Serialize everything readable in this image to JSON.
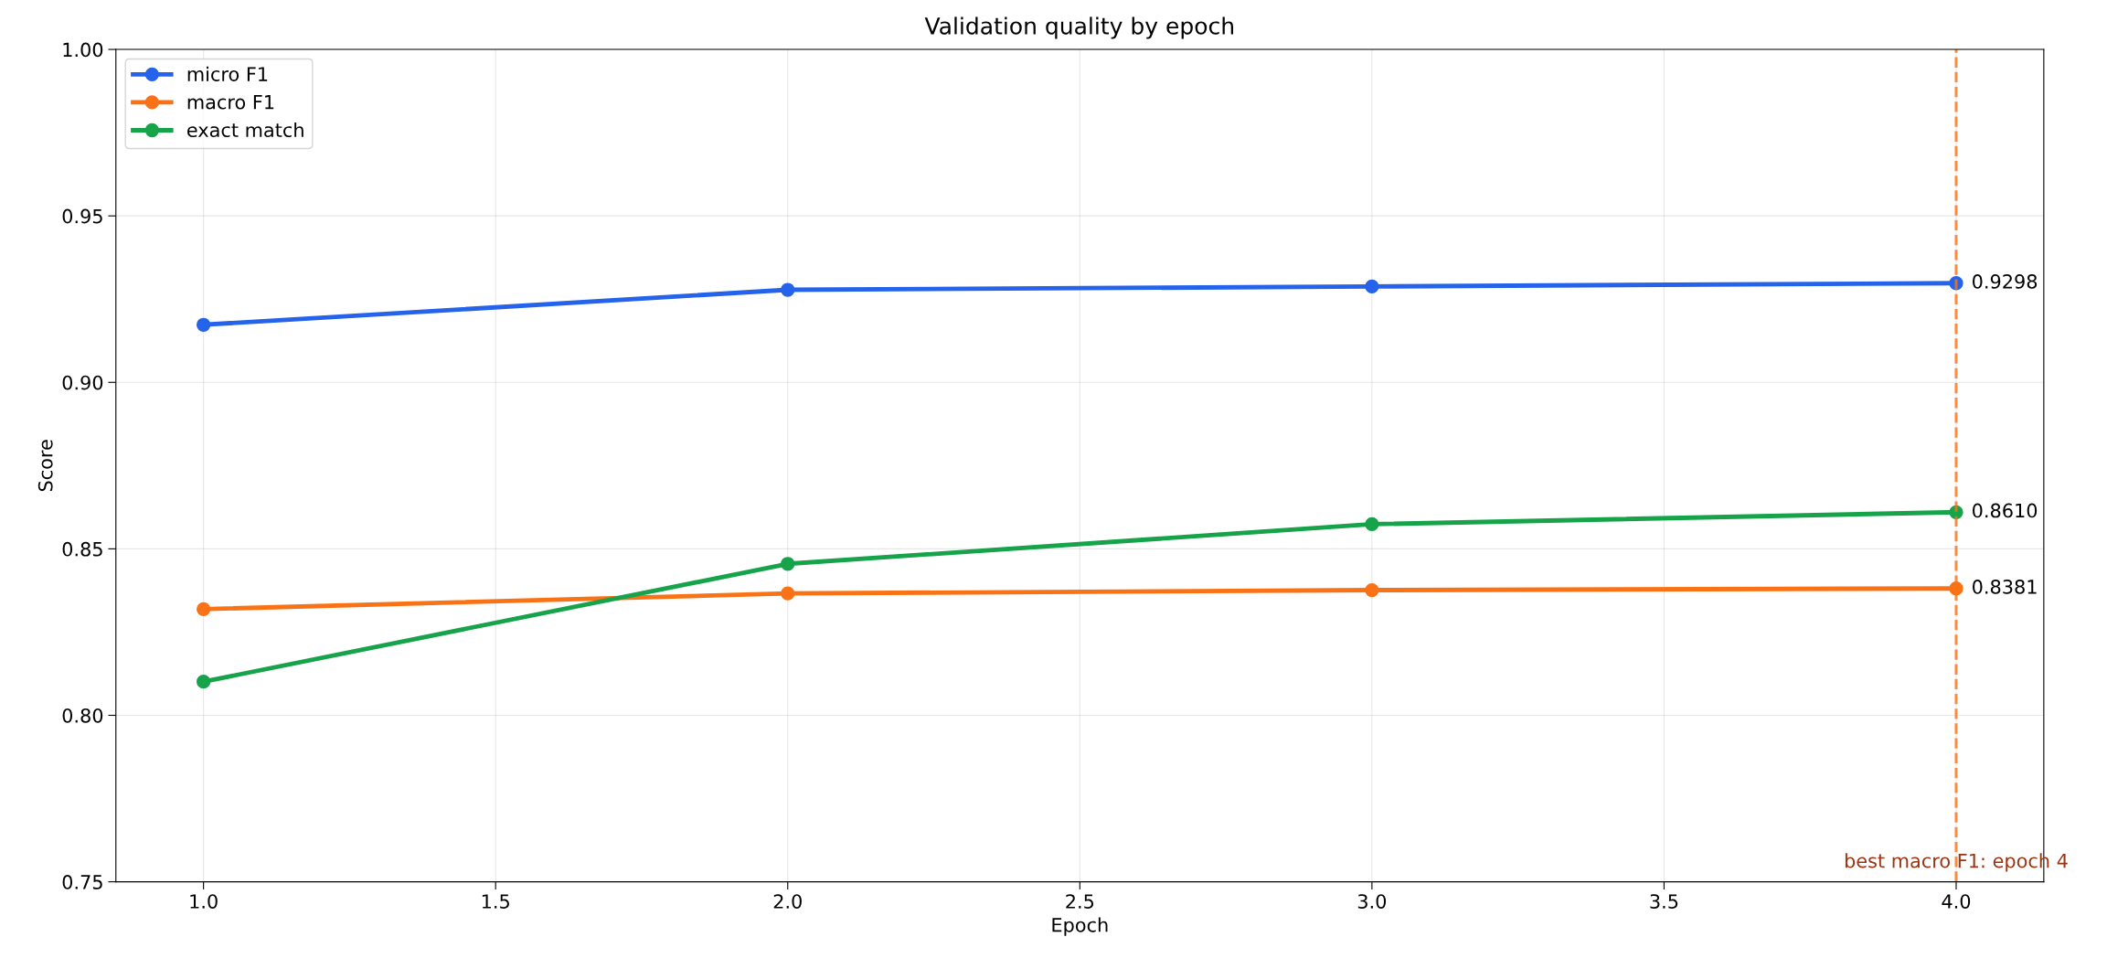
{
  "chart_data": {
    "type": "line",
    "title": "Validation quality by epoch",
    "xlabel": "Epoch",
    "ylabel": "Score",
    "x": [
      1,
      2,
      3,
      4
    ],
    "series": [
      {
        "name": "micro F1",
        "color": "#2563eb",
        "values": [
          0.9173,
          0.9278,
          0.9288,
          0.9298
        ],
        "value_labels": [
          null,
          null,
          null,
          "0.9298"
        ]
      },
      {
        "name": "macro F1",
        "color": "#f97316",
        "values": [
          0.8319,
          0.8366,
          0.8376,
          0.8381
        ],
        "value_labels": [
          null,
          null,
          null,
          "0.8381"
        ]
      },
      {
        "name": "exact match",
        "color": "#16a34a",
        "values": [
          0.8101,
          0.8455,
          0.8574,
          0.861
        ],
        "value_labels": [
          null,
          null,
          null,
          "0.8610"
        ]
      }
    ],
    "xlim": [
      0.85,
      4.15
    ],
    "xticks": [
      {
        "value": 1,
        "label": "1.0"
      },
      {
        "value": 1.5,
        "label": "1.5"
      },
      {
        "value": 2,
        "label": "2.0"
      },
      {
        "value": 2.5,
        "label": "2.5"
      },
      {
        "value": 3,
        "label": "3.0"
      },
      {
        "value": 3.5,
        "label": "3.5"
      },
      {
        "value": 4,
        "label": "4.0"
      }
    ],
    "ylim": [
      0.75,
      1.0
    ],
    "yticks": [
      {
        "value": 0.75,
        "label": "0.75"
      },
      {
        "value": 0.8,
        "label": "0.80"
      },
      {
        "value": 0.85,
        "label": "0.85"
      },
      {
        "value": 0.9,
        "label": "0.90"
      },
      {
        "value": 0.95,
        "label": "0.95"
      },
      {
        "value": 1.0,
        "label": "1.00"
      }
    ],
    "ref_lines": [
      {
        "axis": "x",
        "value": 4,
        "label": "best macro F1: epoch 4",
        "color": "#f97316",
        "line_style": "dashed"
      }
    ],
    "grid": true,
    "legend": "top left",
    "marker": "circle",
    "line_style": "solid"
  }
}
